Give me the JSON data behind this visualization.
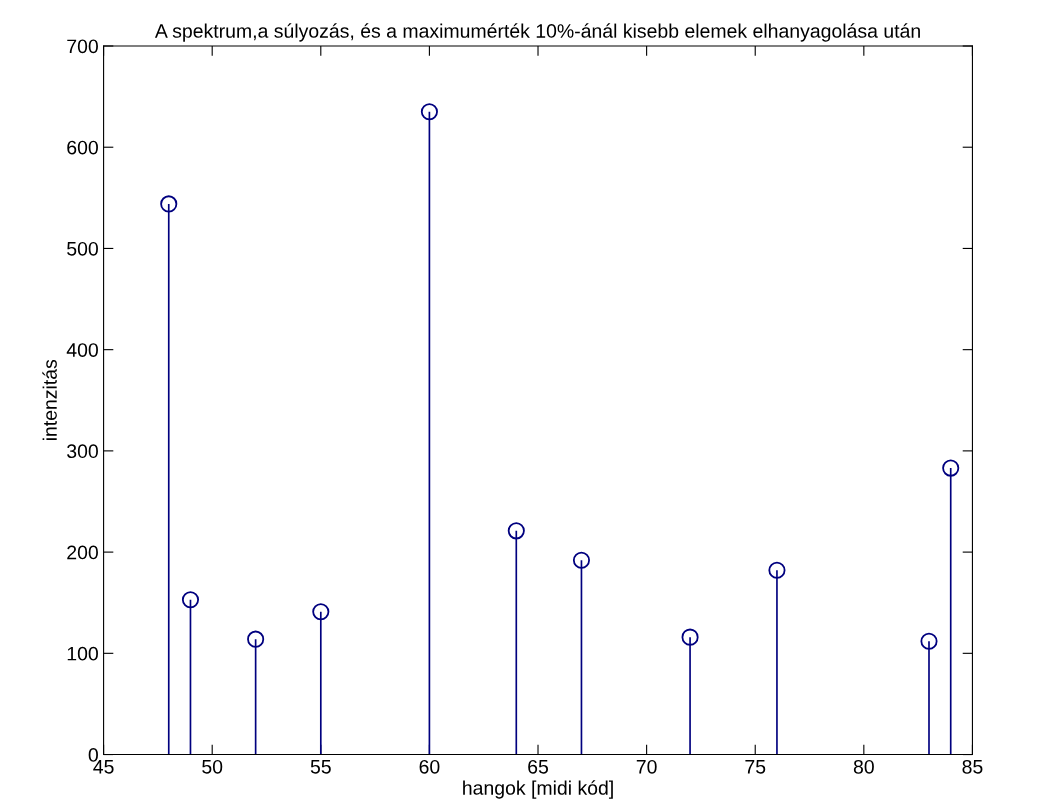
{
  "chart_data": {
    "type": "lollipop",
    "title": "A spektrum,a súlyozás, és a maximumérték 10%-ánál kisebb elemek elhanyagolása után",
    "xlabel": "hangok [midi kód]",
    "ylabel": "intenzitás",
    "x": [
      48,
      49,
      52,
      55,
      60,
      64,
      67,
      72,
      76,
      83,
      84
    ],
    "values": [
      544,
      153,
      114,
      141,
      635,
      221,
      192,
      116,
      182,
      112,
      283
    ],
    "color": "#00007f",
    "marker": "circle",
    "grid": false,
    "legend": false,
    "xlim": [
      45,
      85
    ],
    "xticks": [
      45,
      50,
      55,
      60,
      65,
      70,
      75,
      80,
      85
    ],
    "ylim": [
      0,
      700
    ],
    "yticks": [
      0,
      100,
      200,
      300,
      400,
      500,
      600,
      700
    ]
  }
}
